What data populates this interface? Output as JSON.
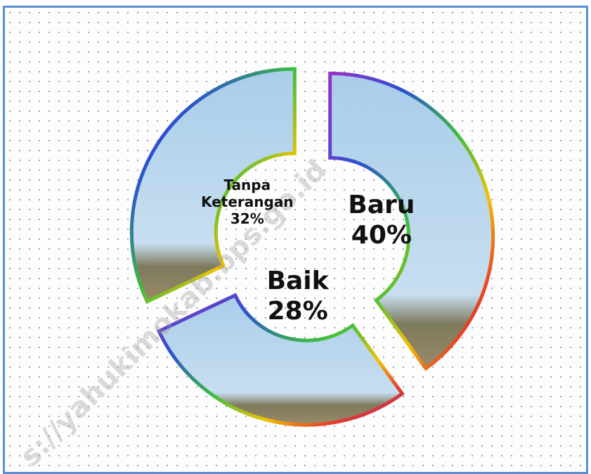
{
  "chart_data": {
    "type": "pie",
    "categories": [
      "Baru",
      "Baik",
      "Tanpa Keterangan"
    ],
    "values": [
      40,
      28,
      32
    ],
    "value_labels": [
      "40%",
      "28%",
      "32%"
    ],
    "watermark": "s://yahukimokab.bps.go.id"
  }
}
